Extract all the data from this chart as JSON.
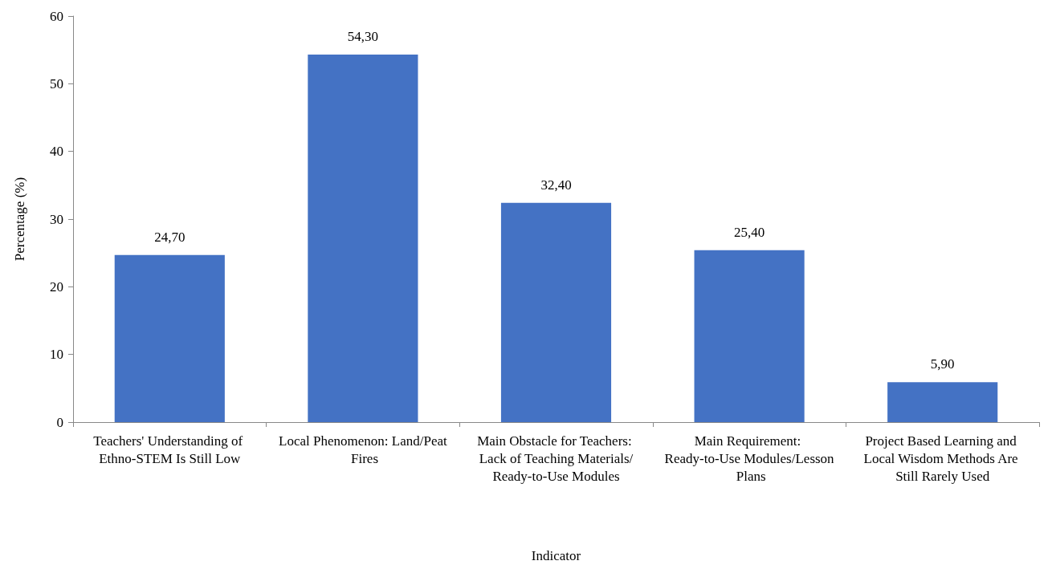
{
  "chart_data": {
    "type": "bar",
    "xlabel": "Indicator",
    "ylabel": "Percentage (%)",
    "categories": [
      "Teachers' Understanding of Ethno-STEM Is Still Low",
      "Local Phenomenon: Land/Peat Fires",
      "Main Obstacle for Teachers: Lack of Teaching Materials/Ready-to-Use Modules",
      "Main Requirement: Ready-to-Use Modules/Lesson Plans",
      "Project Based Learning and Local Wisdom Methods Are Still Rarely Used"
    ],
    "values": [
      24.7,
      54.3,
      32.4,
      25.4,
      5.9
    ],
    "value_labels": [
      "24,70",
      "54,30",
      "32,40",
      "25,40",
      "5,90"
    ],
    "color": "#4472c4",
    "ylim": [
      0,
      60
    ],
    "yticks": [
      0,
      10,
      20,
      30,
      40,
      50,
      60
    ],
    "grid": false
  }
}
